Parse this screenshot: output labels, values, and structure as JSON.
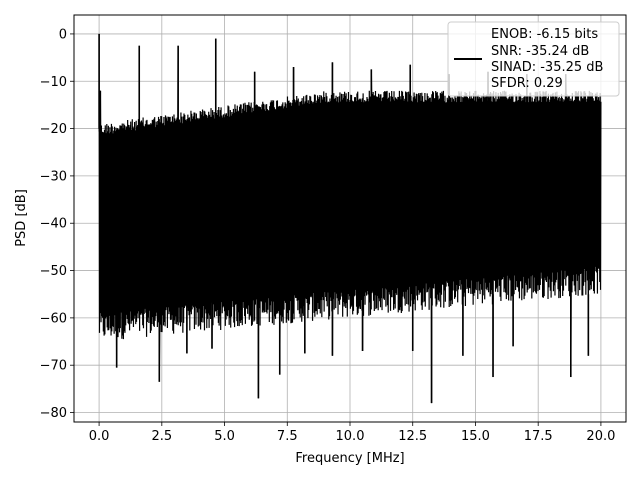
{
  "chart_data": {
    "type": "line",
    "xlabel": "Frequency [MHz]",
    "ylabel": "PSD [dB]",
    "xlim": [
      -1,
      21
    ],
    "ylim": [
      -82,
      4
    ],
    "xticks": [
      0.0,
      2.5,
      5.0,
      7.5,
      10.0,
      12.5,
      15.0,
      17.5,
      20.0
    ],
    "xtick_labels": [
      "0.0",
      "2.5",
      "5.0",
      "7.5",
      "10.0",
      "12.5",
      "15.0",
      "17.5",
      "20.0"
    ],
    "yticks": [
      0,
      -10,
      -20,
      -30,
      -40,
      -50,
      -60,
      -70,
      -80
    ],
    "ytick_labels": [
      "0",
      "−10",
      "−20",
      "−30",
      "−40",
      "−50",
      "−60",
      "−70",
      "−80"
    ],
    "grid": true,
    "legend_position": "top-right",
    "legend_lines": [
      "ENOB: -6.15 bits",
      "SNR: -35.24 dB",
      "SINAD: -35.25 dB",
      "SFDR: 0.29"
    ],
    "series": [
      {
        "color": "#000000",
        "x_range": [
          0,
          20
        ],
        "noise_band_top_db": [
          -19,
          -12
        ],
        "noise_band_bottom_db": [
          -62,
          -52
        ],
        "peaks": [
          {
            "x": 0.0,
            "y": 0.0
          },
          {
            "x": 0.05,
            "y": -12.0
          },
          {
            "x": 1.6,
            "y": -2.5
          },
          {
            "x": 3.15,
            "y": -2.5
          },
          {
            "x": 4.65,
            "y": -1.0
          },
          {
            "x": 6.2,
            "y": -8.0
          },
          {
            "x": 7.75,
            "y": -7.0
          },
          {
            "x": 9.3,
            "y": -6.0
          },
          {
            "x": 10.85,
            "y": -7.5
          },
          {
            "x": 12.4,
            "y": -6.5
          },
          {
            "x": 13.95,
            "y": -8.5
          },
          {
            "x": 15.5,
            "y": -8.0
          },
          {
            "x": 17.05,
            "y": -8.5
          },
          {
            "x": 18.6,
            "y": -8.5
          }
        ],
        "dips": [
          {
            "x": 0.7,
            "y": -70.5
          },
          {
            "x": 2.4,
            "y": -73.5
          },
          {
            "x": 3.5,
            "y": -67.5
          },
          {
            "x": 4.5,
            "y": -66.5
          },
          {
            "x": 6.35,
            "y": -77.0
          },
          {
            "x": 7.2,
            "y": -72.0
          },
          {
            "x": 8.2,
            "y": -67.5
          },
          {
            "x": 9.3,
            "y": -68.0
          },
          {
            "x": 10.5,
            "y": -67.0
          },
          {
            "x": 12.5,
            "y": -67.0
          },
          {
            "x": 13.25,
            "y": -78.0
          },
          {
            "x": 14.5,
            "y": -68.0
          },
          {
            "x": 15.7,
            "y": -72.5
          },
          {
            "x": 16.5,
            "y": -66.0
          },
          {
            "x": 18.8,
            "y": -72.5
          },
          {
            "x": 19.5,
            "y": -68.0
          }
        ]
      }
    ]
  }
}
